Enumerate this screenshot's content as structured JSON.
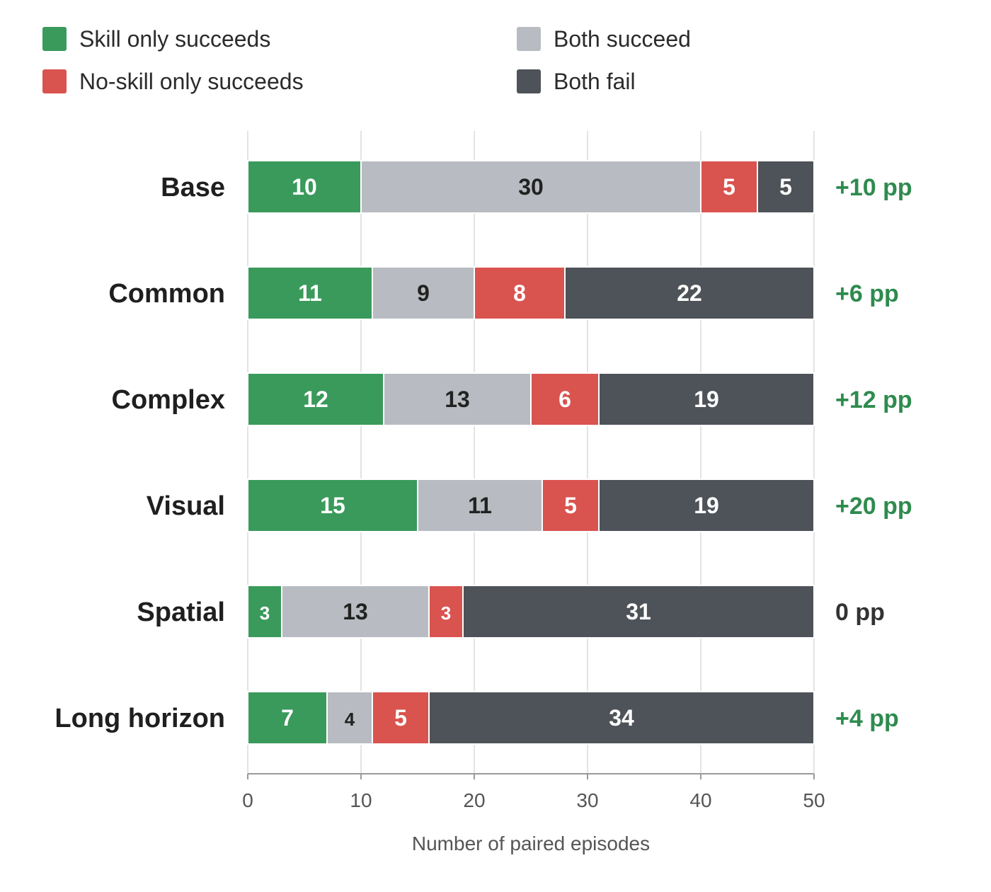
{
  "chart_data": {
    "type": "bar",
    "orientation": "horizontal",
    "stacked": true,
    "categories": [
      "Base",
      "Common",
      "Complex",
      "Visual",
      "Spatial",
      "Long horizon"
    ],
    "series": [
      {
        "name": "Skill only succeeds",
        "color": "#3a9a5b",
        "label_color": "#ffffff",
        "values": [
          10,
          11,
          12,
          15,
          3,
          7
        ]
      },
      {
        "name": "Both succeed",
        "color": "#b8bcc2",
        "label_color": "#222222",
        "values": [
          30,
          9,
          13,
          11,
          13,
          4
        ]
      },
      {
        "name": "No-skill only succeeds",
        "color": "#d9534f",
        "label_color": "#ffffff",
        "values": [
          5,
          8,
          6,
          5,
          3,
          5
        ]
      },
      {
        "name": "Both fail",
        "color": "#4e5259",
        "label_color": "#ffffff",
        "values": [
          5,
          22,
          19,
          19,
          31,
          34
        ]
      }
    ],
    "deltas": [
      {
        "text": "+10 pp",
        "color": "#2e8b4e"
      },
      {
        "text": "+6 pp",
        "color": "#2e8b4e"
      },
      {
        "text": "+12 pp",
        "color": "#2e8b4e"
      },
      {
        "text": "+20 pp",
        "color": "#2e8b4e"
      },
      {
        "text": "0 pp",
        "color": "#333333"
      },
      {
        "text": "+4 pp",
        "color": "#2e8b4e"
      }
    ],
    "xlim": [
      0,
      50
    ],
    "xticks": [
      0,
      10,
      20,
      30,
      40,
      50
    ],
    "xlabel": "Number of paired episodes",
    "ylabel": "",
    "title": "",
    "grid": true,
    "legend_placement": "top"
  },
  "legend": {
    "items": [
      {
        "label": "Skill only succeeds",
        "color": "#3a9a5b"
      },
      {
        "label": "No-skill only succeeds",
        "color": "#d9534f"
      },
      {
        "label": "Both succeed",
        "color": "#b8bcc2"
      },
      {
        "label": "Both fail",
        "color": "#4e5259"
      }
    ]
  }
}
